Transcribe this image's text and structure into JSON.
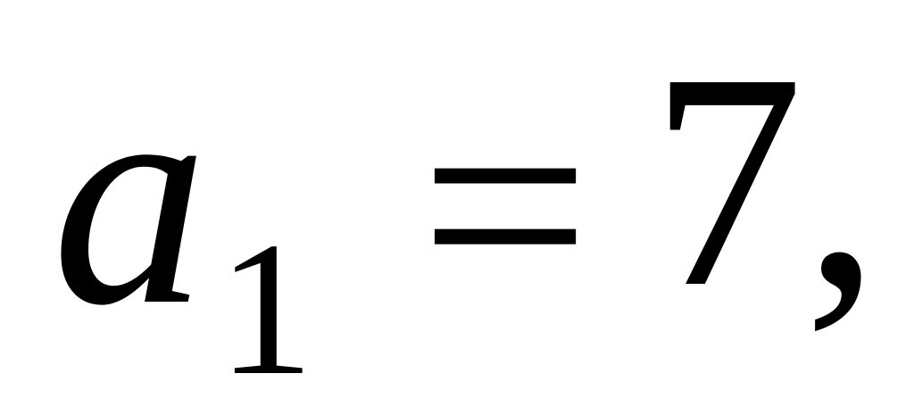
{
  "formula": {
    "variable": "a",
    "subscript": "1",
    "operator": "=",
    "value": "7",
    "punctuation": ","
  }
}
